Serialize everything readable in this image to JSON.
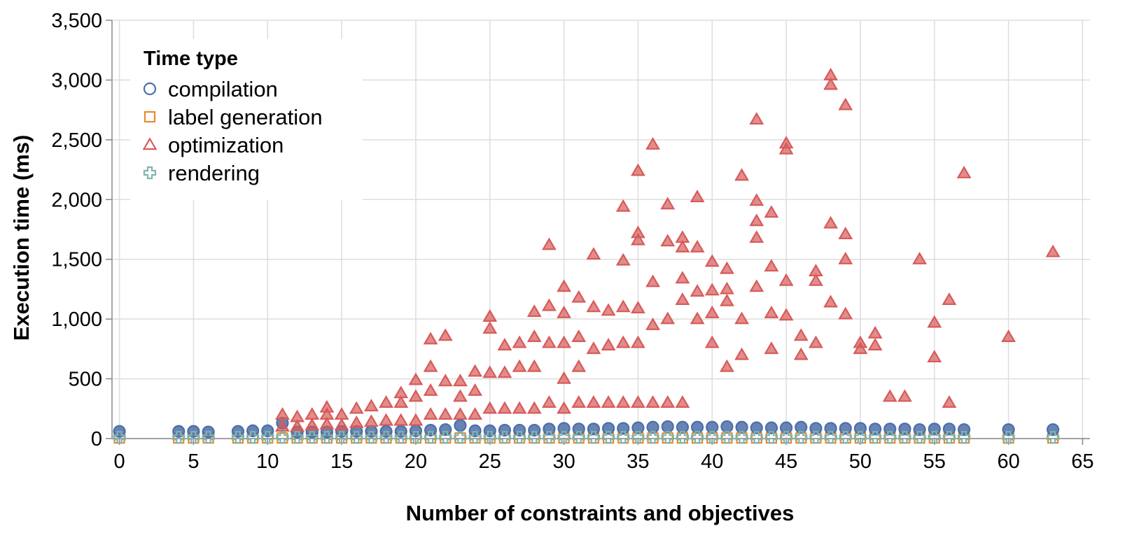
{
  "chart_data": {
    "type": "scatter",
    "title": "",
    "xlabel": "Number of constraints and objectives",
    "ylabel": "Execution time (ms)",
    "xlim": [
      -0.5,
      65.5
    ],
    "ylim": [
      0,
      3500
    ],
    "x_ticks": [
      "0",
      "5",
      "10",
      "15",
      "20",
      "25",
      "30",
      "35",
      "40",
      "45",
      "50",
      "55",
      "60",
      "65"
    ],
    "y_ticks": [
      "0",
      "500",
      "1,000",
      "1,500",
      "2,000",
      "2,500",
      "3,000",
      "3,500"
    ],
    "grid": true,
    "legend": {
      "title": "Time type",
      "placement": "top-left",
      "entries": [
        {
          "label": "compilation",
          "shape": "circle",
          "color": "#4c6fa8"
        },
        {
          "label": "label generation",
          "shape": "square",
          "color": "#e58a2c"
        },
        {
          "label": "optimization",
          "shape": "triangle",
          "color": "#d65b5a"
        },
        {
          "label": "rendering",
          "shape": "cross",
          "color": "#7fb5b0"
        }
      ]
    },
    "series": [
      {
        "name": "compilation",
        "shape": "circle",
        "color": "#4c6fa8",
        "x": [
          0,
          4,
          5,
          6,
          8,
          9,
          10,
          11,
          12,
          13,
          14,
          15,
          16,
          17,
          18,
          19,
          20,
          21,
          22,
          23,
          24,
          25,
          26,
          27,
          28,
          29,
          30,
          31,
          32,
          33,
          34,
          35,
          36,
          37,
          38,
          39,
          40,
          41,
          42,
          43,
          44,
          45,
          46,
          47,
          48,
          49,
          50,
          51,
          52,
          53,
          54,
          55,
          56,
          57,
          60,
          63
        ],
        "y": [
          60,
          60,
          60,
          55,
          60,
          65,
          65,
          130,
          55,
          55,
          55,
          60,
          60,
          60,
          60,
          60,
          65,
          70,
          75,
          110,
          65,
          65,
          70,
          70,
          70,
          80,
          85,
          80,
          80,
          85,
          85,
          90,
          95,
          100,
          95,
          95,
          95,
          100,
          95,
          90,
          90,
          90,
          95,
          85,
          85,
          85,
          85,
          80,
          80,
          80,
          75,
          80,
          80,
          75,
          75,
          75
        ]
      },
      {
        "name": "label generation",
        "shape": "square",
        "color": "#e58a2c",
        "x": [
          0,
          4,
          5,
          6,
          8,
          9,
          10,
          11,
          12,
          13,
          14,
          15,
          16,
          17,
          18,
          19,
          20,
          21,
          22,
          23,
          24,
          25,
          26,
          27,
          28,
          29,
          30,
          31,
          32,
          33,
          34,
          35,
          36,
          37,
          38,
          39,
          40,
          41,
          42,
          43,
          44,
          45,
          46,
          47,
          48,
          49,
          50,
          51,
          52,
          53,
          54,
          55,
          56,
          57,
          60,
          63
        ],
        "y": [
          5,
          5,
          5,
          5,
          5,
          5,
          5,
          5,
          5,
          5,
          5,
          5,
          5,
          5,
          5,
          5,
          5,
          5,
          5,
          5,
          5,
          5,
          5,
          5,
          5,
          5,
          5,
          5,
          5,
          5,
          5,
          5,
          5,
          5,
          5,
          5,
          5,
          5,
          5,
          5,
          5,
          5,
          5,
          5,
          5,
          5,
          5,
          5,
          5,
          5,
          5,
          5,
          5,
          5,
          5,
          5
        ]
      },
      {
        "name": "optimization",
        "shape": "triangle",
        "color": "#d65b5a",
        "x": [
          11,
          11,
          12,
          12,
          13,
          13,
          14,
          14,
          14,
          15,
          15,
          16,
          16,
          17,
          17,
          18,
          18,
          19,
          19,
          19,
          20,
          20,
          20,
          21,
          21,
          21,
          21,
          22,
          22,
          22,
          23,
          23,
          23,
          24,
          24,
          24,
          25,
          25,
          25,
          25,
          26,
          26,
          26,
          27,
          27,
          27,
          28,
          28,
          28,
          28,
          29,
          29,
          29,
          29,
          30,
          30,
          30,
          30,
          30,
          31,
          31,
          31,
          31,
          32,
          32,
          32,
          32,
          33,
          33,
          33,
          34,
          34,
          34,
          34,
          34,
          35,
          35,
          35,
          35,
          35,
          35,
          36,
          36,
          36,
          36,
          37,
          37,
          37,
          37,
          38,
          38,
          38,
          38,
          38,
          39,
          39,
          39,
          39,
          40,
          40,
          40,
          40,
          41,
          41,
          41,
          41,
          42,
          42,
          42,
          43,
          43,
          43,
          43,
          43,
          44,
          44,
          44,
          44,
          45,
          45,
          45,
          45,
          46,
          46,
          47,
          47,
          47,
          48,
          48,
          48,
          48,
          49,
          49,
          49,
          49,
          50,
          50,
          51,
          51,
          52,
          53,
          54,
          55,
          55,
          56,
          56,
          57,
          60,
          63
        ],
        "y": [
          200,
          100,
          180,
          100,
          200,
          110,
          260,
          200,
          120,
          200,
          110,
          250,
          130,
          270,
          140,
          300,
          150,
          380,
          300,
          150,
          490,
          350,
          150,
          830,
          600,
          400,
          200,
          860,
          480,
          200,
          480,
          350,
          200,
          560,
          400,
          200,
          1020,
          920,
          550,
          250,
          780,
          550,
          250,
          800,
          600,
          250,
          1060,
          850,
          600,
          250,
          1620,
          1110,
          800,
          300,
          1270,
          1050,
          800,
          500,
          250,
          1180,
          850,
          600,
          300,
          1540,
          1100,
          750,
          300,
          1070,
          780,
          300,
          1940,
          1490,
          1100,
          800,
          300,
          2240,
          1720,
          1660,
          1090,
          800,
          300,
          2460,
          1310,
          950,
          300,
          1960,
          1650,
          1000,
          300,
          1680,
          1600,
          1340,
          1160,
          300,
          2020,
          1600,
          1230,
          1000,
          1480,
          1240,
          1050,
          800,
          1420,
          1250,
          1150,
          600,
          2200,
          1000,
          700,
          2670,
          1990,
          1820,
          1680,
          1270,
          1890,
          1440,
          1050,
          750,
          2470,
          2420,
          1320,
          1030,
          860,
          700,
          1400,
          1320,
          800,
          3040,
          2960,
          1800,
          1140,
          2790,
          1710,
          1500,
          1040,
          800,
          750,
          880,
          780,
          350,
          350,
          1500,
          970,
          680,
          1160,
          300,
          2220,
          850,
          1560
        ]
      },
      {
        "name": "rendering",
        "shape": "cross",
        "color": "#7fb5b0",
        "x": [
          0,
          4,
          5,
          6,
          8,
          9,
          10,
          11,
          12,
          13,
          14,
          15,
          16,
          17,
          18,
          19,
          20,
          21,
          22,
          23,
          24,
          25,
          26,
          27,
          28,
          29,
          30,
          31,
          32,
          33,
          34,
          35,
          36,
          37,
          38,
          39,
          40,
          41,
          42,
          43,
          44,
          45,
          46,
          47,
          48,
          49,
          50,
          51,
          52,
          53,
          54,
          55,
          56,
          57,
          60,
          63
        ],
        "y": [
          10,
          10,
          10,
          10,
          10,
          10,
          10,
          10,
          10,
          10,
          10,
          10,
          10,
          10,
          10,
          10,
          10,
          10,
          10,
          10,
          10,
          10,
          10,
          10,
          10,
          10,
          10,
          10,
          10,
          10,
          10,
          10,
          10,
          10,
          10,
          10,
          10,
          10,
          10,
          10,
          10,
          10,
          10,
          10,
          10,
          10,
          10,
          10,
          10,
          10,
          10,
          10,
          10,
          10,
          10,
          10
        ]
      }
    ]
  }
}
